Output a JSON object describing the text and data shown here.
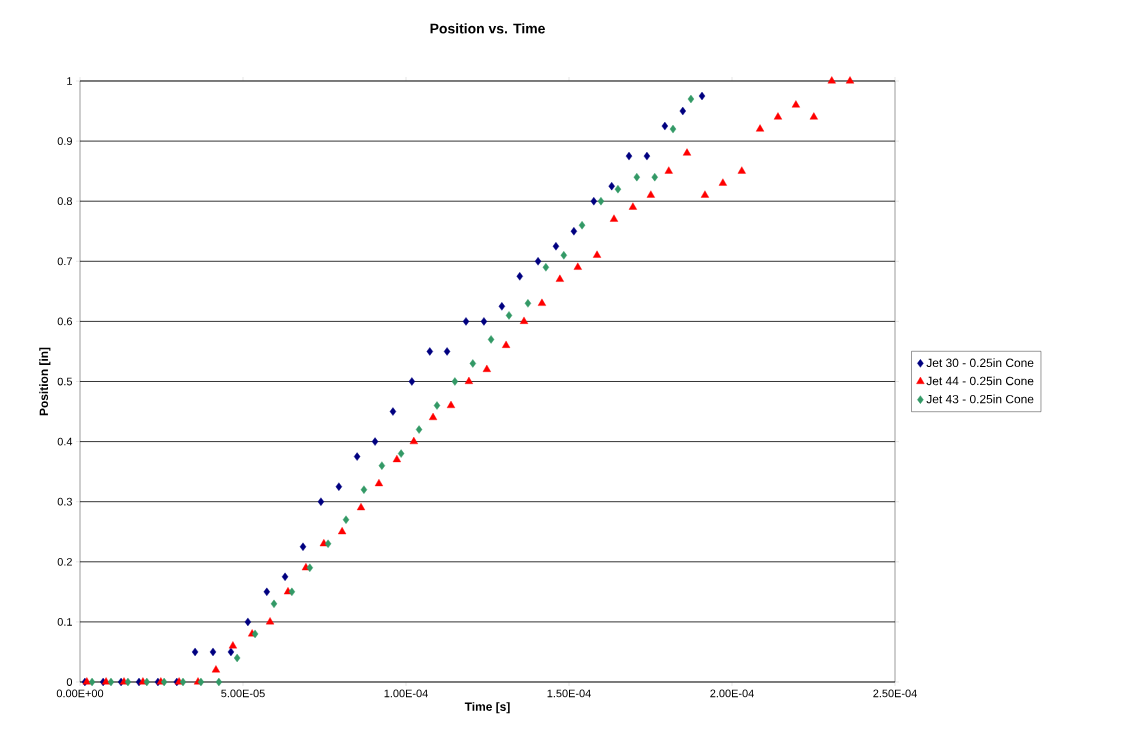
{
  "chart_data": {
    "type": "scatter",
    "title": "Position vs. Time",
    "xlabel": "Time [s]",
    "ylabel": "Position [in]",
    "xlim": [
      0,
      0.00025
    ],
    "xticks": [
      {
        "value": 0,
        "label": "0.00E+00"
      },
      {
        "value": 5e-05,
        "label": "5.00E-05"
      },
      {
        "value": 0.0001,
        "label": "1.00E-04"
      },
      {
        "value": 0.00015,
        "label": "1.50E-04"
      },
      {
        "value": 0.0002,
        "label": "2.00E-04"
      },
      {
        "value": 0.00025,
        "label": "2.50E-04"
      }
    ],
    "ylim": [
      0,
      1
    ],
    "yticks": [
      0,
      0.1,
      0.2,
      0.3,
      0.4,
      0.5,
      0.6,
      0.7,
      0.8,
      0.9,
      1
    ],
    "grid": "y",
    "legend": "right",
    "series": [
      {
        "name": "Jet 30 - 0.25in Cone",
        "color": "#000080",
        "marker": "diamond",
        "x": [
          1.5e-06,
          7.1e-06,
          1.26e-05,
          1.81e-05,
          2.39e-05,
          2.97e-05,
          3.53e-05,
          4.08e-05,
          4.63e-05,
          5.15e-05,
          5.73e-05,
          6.29e-05,
          6.84e-05,
          7.39e-05,
          7.94e-05,
          8.5e-05,
          9.05e-05,
          9.6e-05,
          0.0001018,
          0.0001073,
          0.0001126,
          0.0001184,
          0.0001239,
          0.0001294,
          0.0001349,
          0.0001405,
          0.000146,
          0.0001515,
          0.0001576,
          0.0001631,
          0.0001684,
          0.0001739,
          0.0001794,
          0.0001849,
          0.0001908
        ],
        "values": [
          0,
          0,
          0,
          0,
          0,
          0,
          0.05,
          0.05,
          0.05,
          0.1,
          0.15,
          0.175,
          0.225,
          0.3,
          0.325,
          0.375,
          0.4,
          0.45,
          0.5,
          0.55,
          0.55,
          0.6,
          0.6,
          0.625,
          0.675,
          0.7,
          0.725,
          0.75,
          0.8,
          0.825,
          0.875,
          0.875,
          0.925,
          0.95,
          0.975
        ]
      },
      {
        "name": "Jet 44 - 0.25in Cone",
        "color": "#ff0000",
        "marker": "triangle",
        "x": [
          2.1e-06,
          8e-06,
          1.35e-05,
          1.93e-05,
          2.48e-05,
          3.04e-05,
          3.62e-05,
          4.17e-05,
          4.69e-05,
          5.28e-05,
          5.83e-05,
          6.38e-05,
          6.93e-05,
          7.48e-05,
          8.04e-05,
          8.62e-05,
          9.17e-05,
          9.72e-05,
          0.0001024,
          0.0001083,
          0.0001138,
          0.0001193,
          0.0001248,
          0.0001307,
          0.0001362,
          0.0001417,
          0.0001472,
          0.0001527,
          0.0001586,
          0.0001638,
          0.0001696,
          0.0001751,
          0.0001806,
          0.0001862,
          0.0001917,
          0.0001972,
          0.000203,
          0.0002086,
          0.0002141,
          0.0002196,
          0.0002251,
          0.0002306,
          0.0002362
        ],
        "values": [
          0,
          0,
          0,
          0,
          0,
          0,
          0,
          0.02,
          0.06,
          0.08,
          0.1,
          0.15,
          0.19,
          0.23,
          0.25,
          0.29,
          0.33,
          0.37,
          0.4,
          0.44,
          0.46,
          0.5,
          0.52,
          0.56,
          0.6,
          0.63,
          0.67,
          0.69,
          0.71,
          0.77,
          0.79,
          0.81,
          0.85,
          0.88,
          0.81,
          0.83,
          0.85,
          0.92,
          0.94,
          0.96,
          0.94,
          1,
          1
        ]
      },
      {
        "name": "Jet 43 - 0.25in Cone",
        "color": "#339966",
        "marker": "diamond",
        "x": [
          3.7e-06,
          9.5e-06,
          1.47e-05,
          2.05e-05,
          2.58e-05,
          3.16e-05,
          3.71e-05,
          4.26e-05,
          4.82e-05,
          5.37e-05,
          5.95e-05,
          6.5e-05,
          7.05e-05,
          7.61e-05,
          8.16e-05,
          8.71e-05,
          9.26e-05,
          9.85e-05,
          0.000104,
          0.0001095,
          0.000115,
          0.0001205,
          0.0001261,
          0.0001316,
          0.0001374,
          0.0001429,
          0.0001484,
          0.000154,
          0.0001598,
          0.000165,
          0.0001708,
          0.0001763,
          0.0001819,
          0.0001874
        ],
        "values": [
          0,
          0,
          0,
          0,
          0,
          0,
          0,
          0,
          0.04,
          0.08,
          0.13,
          0.15,
          0.19,
          0.23,
          0.27,
          0.32,
          0.36,
          0.38,
          0.42,
          0.46,
          0.5,
          0.53,
          0.57,
          0.61,
          0.63,
          0.69,
          0.71,
          0.76,
          0.8,
          0.82,
          0.84,
          0.84,
          0.92,
          0.97
        ]
      }
    ]
  }
}
